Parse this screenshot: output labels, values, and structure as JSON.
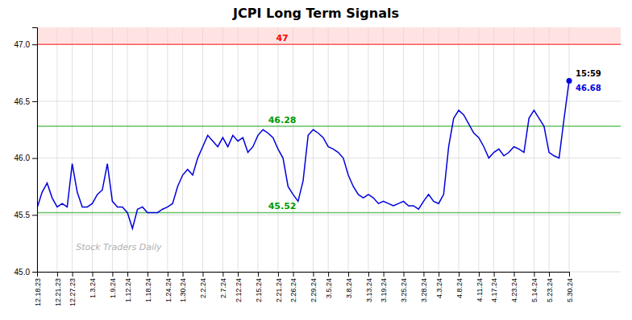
{
  "chart_data": {
    "type": "line",
    "title": "JCPI Long Term Signals",
    "watermark": "Stock Traders Daily",
    "color": "#0000dd",
    "grid": true,
    "ylim": [
      45.0,
      47.15
    ],
    "yticks": [
      {
        "value": 45.0,
        "label": "45.0"
      },
      45.5,
      {
        "value": 46.0,
        "label": "46.0"
      },
      46.5,
      {
        "value": 47.0,
        "label": "47.0"
      }
    ],
    "bands": [
      {
        "from": 47.0,
        "to": 47.15,
        "color": "#ffcccc"
      }
    ],
    "hlines": [
      {
        "value": 47.0,
        "label": "47",
        "color": "#ff0000"
      },
      {
        "value": 46.28,
        "label": "46.28",
        "color": "#009900"
      },
      {
        "value": 45.52,
        "label": "45.52",
        "color": "#009900"
      }
    ],
    "last_point": {
      "time": "15:59",
      "value": 46.68,
      "label": "46.68",
      "color": "#0000dd"
    },
    "categories": [
      "12.18.23",
      null,
      null,
      null,
      "12.21.23",
      null,
      null,
      "12.27.23",
      null,
      null,
      null,
      "1.3.24",
      null,
      null,
      null,
      "1.9.24",
      null,
      null,
      "1.12.24",
      null,
      null,
      null,
      "1.18.24",
      null,
      null,
      null,
      "1.24.24",
      null,
      null,
      "1.30.24",
      null,
      null,
      null,
      "2.2.24",
      null,
      null,
      null,
      "2.7.24",
      null,
      null,
      "2.12.24",
      null,
      null,
      null,
      "2.15.24",
      null,
      null,
      null,
      "2.21.24",
      null,
      null,
      "2.26.24",
      null,
      null,
      null,
      "2.29.24",
      null,
      null,
      "3.5.24",
      null,
      null,
      null,
      "3.8.24",
      null,
      null,
      null,
      "3.13.24",
      null,
      null,
      "3.19.24",
      null,
      null,
      null,
      "3.25.24",
      null,
      null,
      null,
      "3.28.24",
      null,
      null,
      "4.3.24",
      null,
      null,
      null,
      "4.8.24",
      null,
      null,
      null,
      "4.11.24",
      null,
      null,
      "4.17.24",
      null,
      null,
      null,
      "4.23.24",
      null,
      null,
      null,
      "5.14.24",
      null,
      null,
      "5.23.24",
      null,
      null,
      null,
      "5.30.24"
    ],
    "values": [
      45.56,
      45.7,
      45.78,
      45.65,
      45.57,
      45.6,
      45.57,
      45.95,
      45.7,
      45.57,
      45.57,
      45.6,
      45.68,
      45.72,
      45.95,
      45.62,
      45.57,
      45.57,
      45.52,
      45.38,
      45.55,
      45.57,
      45.52,
      45.52,
      45.52,
      45.55,
      45.57,
      45.6,
      45.75,
      45.85,
      45.9,
      45.85,
      46.0,
      46.1,
      46.2,
      46.15,
      46.1,
      46.18,
      46.1,
      46.2,
      46.15,
      46.18,
      46.05,
      46.1,
      46.2,
      46.25,
      46.22,
      46.18,
      46.08,
      46.0,
      45.75,
      45.68,
      45.62,
      45.8,
      46.2,
      46.25,
      46.22,
      46.18,
      46.1,
      46.08,
      46.05,
      46.0,
      45.85,
      45.75,
      45.68,
      45.65,
      45.68,
      45.65,
      45.6,
      45.62,
      45.6,
      45.58,
      45.6,
      45.62,
      45.58,
      45.58,
      45.55,
      45.62,
      45.68,
      45.62,
      45.6,
      45.68,
      46.1,
      46.35,
      46.42,
      46.38,
      46.3,
      46.22,
      46.18,
      46.1,
      46.0,
      46.05,
      46.08,
      46.02,
      46.05,
      46.1,
      46.08,
      46.05,
      46.35,
      46.42,
      46.35,
      46.28,
      46.05,
      46.02,
      46.0,
      46.35,
      46.68
    ]
  }
}
